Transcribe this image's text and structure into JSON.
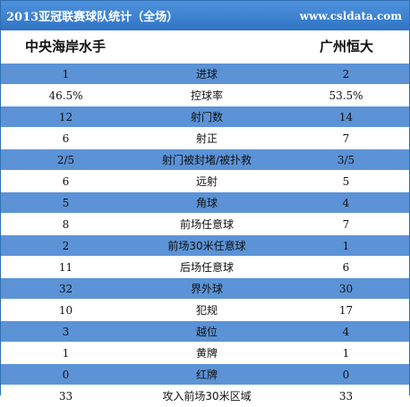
{
  "header": {
    "title": "2013亚冠联赛球队统计（全场）",
    "site": "www.csldata.com"
  },
  "teams": {
    "home": "中央海岸水手",
    "away": "广州恒大"
  },
  "colors": {
    "banner": "#3a7fce",
    "row_blue": "#5b93d6",
    "row_white": "#ffffff",
    "border": "#2f6fb0"
  },
  "stats": [
    {
      "home": "1",
      "label": "进球",
      "away": "2"
    },
    {
      "home": "46.5%",
      "label": "控球率",
      "away": "53.5%"
    },
    {
      "home": "12",
      "label": "射门数",
      "away": "14"
    },
    {
      "home": "6",
      "label": "射正",
      "away": "7"
    },
    {
      "home": "2/5",
      "label": "射门被封堵/被扑救",
      "away": "3/5"
    },
    {
      "home": "6",
      "label": "远射",
      "away": "5"
    },
    {
      "home": "5",
      "label": "角球",
      "away": "4"
    },
    {
      "home": "8",
      "label": "前场任意球",
      "away": "7"
    },
    {
      "home": "2",
      "label": "前场30米任意球",
      "away": "1"
    },
    {
      "home": "11",
      "label": "后场任意球",
      "away": "6"
    },
    {
      "home": "32",
      "label": "界外球",
      "away": "30"
    },
    {
      "home": "10",
      "label": "犯规",
      "away": "17"
    },
    {
      "home": "3",
      "label": "越位",
      "away": "4"
    },
    {
      "home": "1",
      "label": "黄牌",
      "away": "1"
    },
    {
      "home": "0",
      "label": "红牌",
      "away": "0"
    },
    {
      "home": "33",
      "label": "攻入前场30米区域",
      "away": "33"
    }
  ]
}
